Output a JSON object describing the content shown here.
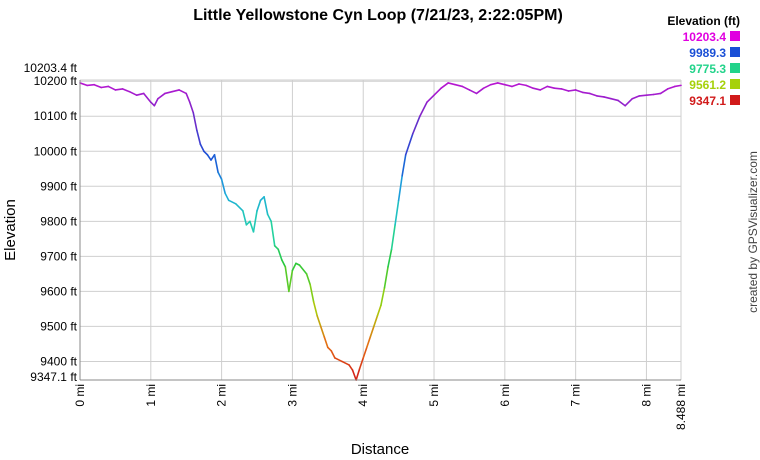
{
  "chart_data": {
    "type": "line",
    "title": "Little Yellowstone Cyn Loop (7/21/23, 2:22:05PM)",
    "xlabel": "Distance",
    "ylabel": "Elevation",
    "xlim": [
      0,
      8.488
    ],
    "ylim": [
      9347.1,
      10203.4
    ],
    "x_ticks": [
      {
        "value": 0,
        "label": "0 mi"
      },
      {
        "value": 1,
        "label": "1 mi"
      },
      {
        "value": 2,
        "label": "2 mi"
      },
      {
        "value": 3,
        "label": "3 mi"
      },
      {
        "value": 4,
        "label": "4 mi"
      },
      {
        "value": 5,
        "label": "5 mi"
      },
      {
        "value": 6,
        "label": "6 mi"
      },
      {
        "value": 7,
        "label": "7 mi"
      },
      {
        "value": 8,
        "label": "8 mi"
      },
      {
        "value": 8.488,
        "label": "8.488 mi"
      }
    ],
    "y_ticks": [
      {
        "value": 9347.1,
        "label": "9347.1 ft"
      },
      {
        "value": 9400,
        "label": "9400 ft"
      },
      {
        "value": 9500,
        "label": "9500 ft"
      },
      {
        "value": 9600,
        "label": "9600 ft"
      },
      {
        "value": 9700,
        "label": "9700 ft"
      },
      {
        "value": 9800,
        "label": "9800 ft"
      },
      {
        "value": 9900,
        "label": "9900 ft"
      },
      {
        "value": 10000,
        "label": "10000 ft"
      },
      {
        "value": 10100,
        "label": "10100 ft"
      },
      {
        "value": 10200,
        "label": "10200 ft"
      },
      {
        "value": 10203.4,
        "label": "10203.4 ft"
      }
    ],
    "grid": true,
    "legend": {
      "title": "Elevation (ft)",
      "placement": "top-right",
      "entries": [
        {
          "label": "10203.4",
          "color": "#e000e0"
        },
        {
          "label": "9989.3",
          "color": "#1a4fd6"
        },
        {
          "label": "9775.3",
          "color": "#22d38a"
        },
        {
          "label": "9561.2",
          "color": "#a6d10a"
        },
        {
          "label": "9347.1",
          "color": "#d11a1a"
        }
      ]
    },
    "series": [
      {
        "x": [
          0,
          0.1,
          0.2,
          0.3,
          0.4,
          0.5,
          0.6,
          0.7,
          0.8,
          0.9,
          1.0,
          1.05,
          1.1,
          1.2,
          1.3,
          1.4,
          1.5,
          1.55,
          1.6,
          1.65,
          1.7,
          1.75,
          1.8,
          1.85,
          1.9,
          1.95,
          2.0,
          2.05,
          2.1,
          2.2,
          2.3,
          2.35,
          2.4,
          2.45,
          2.5,
          2.55,
          2.6,
          2.65,
          2.7,
          2.75,
          2.8,
          2.85,
          2.9,
          2.95,
          3.0,
          3.05,
          3.1,
          3.2,
          3.25,
          3.3,
          3.35,
          3.4,
          3.45,
          3.5,
          3.55,
          3.6,
          3.7,
          3.8,
          3.85,
          3.9,
          3.95,
          4.0,
          4.05,
          4.1,
          4.15,
          4.2,
          4.25,
          4.3,
          4.35,
          4.4,
          4.45,
          4.5,
          4.55,
          4.6,
          4.7,
          4.8,
          4.9,
          5.0,
          5.1,
          5.2,
          5.3,
          5.4,
          5.5,
          5.6,
          5.7,
          5.8,
          5.9,
          6.0,
          6.1,
          6.2,
          6.3,
          6.4,
          6.5,
          6.6,
          6.7,
          6.8,
          6.9,
          7.0,
          7.1,
          7.2,
          7.3,
          7.4,
          7.5,
          7.6,
          7.7,
          7.8,
          7.9,
          8.0,
          8.1,
          8.2,
          8.3,
          8.4,
          8.488
        ],
        "y": [
          10195,
          10188,
          10190,
          10182,
          10185,
          10175,
          10178,
          10170,
          10160,
          10165,
          10140,
          10130,
          10150,
          10165,
          10170,
          10175,
          10165,
          10140,
          10110,
          10060,
          10020,
          10000,
          9990,
          9975,
          9990,
          9940,
          9920,
          9880,
          9860,
          9850,
          9830,
          9790,
          9800,
          9770,
          9830,
          9860,
          9870,
          9820,
          9800,
          9730,
          9720,
          9690,
          9670,
          9600,
          9660,
          9680,
          9675,
          9650,
          9620,
          9570,
          9530,
          9500,
          9470,
          9440,
          9430,
          9410,
          9400,
          9390,
          9375,
          9347.1,
          9380,
          9410,
          9440,
          9470,
          9500,
          9530,
          9560,
          9610,
          9670,
          9720,
          9790,
          9860,
          9930,
          9990,
          10050,
          10100,
          10140,
          10160,
          10180,
          10195,
          10190,
          10185,
          10175,
          10165,
          10180,
          10190,
          10195,
          10190,
          10185,
          10192,
          10188,
          10180,
          10175,
          10185,
          10180,
          10178,
          10172,
          10175,
          10168,
          10165,
          10158,
          10155,
          10150,
          10145,
          10130,
          10150,
          10158,
          10160,
          10162,
          10165,
          10178,
          10185,
          10188
        ]
      }
    ]
  },
  "credit": "created by GPSVisualizer.com"
}
